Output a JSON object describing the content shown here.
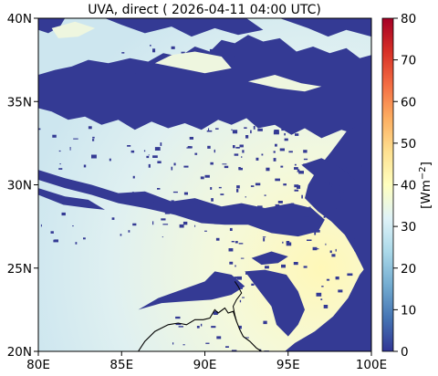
{
  "chart_data": {
    "type": "heatmap",
    "title": "UVA, direct ( 2026-04-11 04:00 UTC)",
    "colorbar": {
      "label": "[Wm$^{-2}$]",
      "label_display": "[Wm",
      "label_sup": "−2",
      "label_end": "]",
      "min": 0,
      "max": 80,
      "ticks": [
        "0",
        "10",
        "20",
        "30",
        "40",
        "50",
        "60",
        "70",
        "80"
      ],
      "tick_values": [
        0,
        10,
        20,
        30,
        40,
        50,
        60,
        70,
        80
      ],
      "colormap": "RdYlBu_r",
      "colors": [
        "#313695",
        "#4575b4",
        "#74add1",
        "#abd9e9",
        "#e0f3f8",
        "#ffffbf",
        "#fee090",
        "#fdae61",
        "#f46d43",
        "#d73027",
        "#a50026"
      ]
    },
    "x_axis": {
      "ticks": [
        "80E",
        "85E",
        "90E",
        "95E",
        "100E"
      ],
      "tick_values": [
        80,
        85,
        90,
        95,
        100
      ],
      "range": [
        80,
        100
      ]
    },
    "y_axis": {
      "ticks": [
        "20N",
        "25N",
        "30N",
        "35N",
        "40N"
      ],
      "tick_values": [
        20,
        25,
        30,
        35,
        40
      ],
      "range": [
        20,
        40
      ]
    },
    "field": {
      "clear_sky_value_sw": 27,
      "clear_sky_value_center": 36,
      "clear_sky_value_se": 42,
      "cloud_value": 2
    }
  }
}
